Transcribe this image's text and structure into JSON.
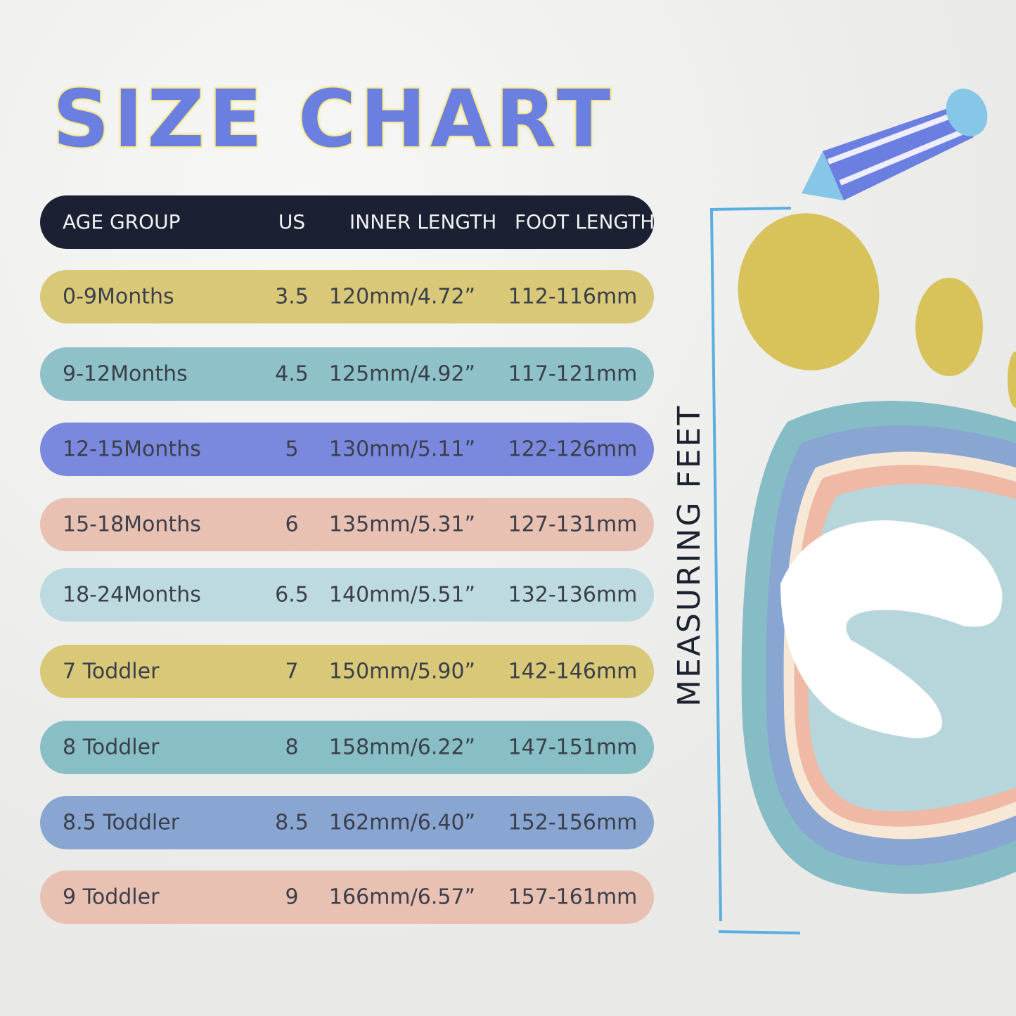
{
  "title": "SIZE CHART",
  "side_label": "MEASURING FEET",
  "table": {
    "headers": [
      "AGE GROUP",
      "US",
      "INNER LENGTH",
      "FOOT LENGTH"
    ],
    "rows": [
      {
        "age": "0-9Months",
        "us": "3.5",
        "inner": "120mm/4.72”",
        "foot": "112-116mm",
        "color": "#d8c878"
      },
      {
        "age": "9-12Months",
        "us": "4.5",
        "inner": "125mm/4.92”",
        "foot": "117-121mm",
        "color": "#8ec2c8"
      },
      {
        "age": "12-15Months",
        "us": "5",
        "inner": "130mm/5.11”",
        "foot": "122-126mm",
        "color": "#7a88de"
      },
      {
        "age": "15-18Months",
        "us": "6",
        "inner": "135mm/5.31”",
        "foot": "127-131mm",
        "color": "#e9c1b3"
      },
      {
        "age": "18-24Months",
        "us": "6.5",
        "inner": "140mm/5.51”",
        "foot": "132-136mm",
        "color": "#bcdadf"
      },
      {
        "age": "7 Toddler",
        "us": "7",
        "inner": "150mm/5.90”",
        "foot": "142-146mm",
        "color": "#d8c878"
      },
      {
        "age": "8 Toddler",
        "us": "8",
        "inner": "158mm/6.22”",
        "foot": "147-151mm",
        "color": "#88bec6"
      },
      {
        "age": "8.5 Toddler",
        "us": "8.5",
        "inner": "162mm/6.40”",
        "foot": "152-156mm",
        "color": "#89a6d2"
      },
      {
        "age": "9 Toddler",
        "us": "9",
        "inner": "166mm/6.57”",
        "foot": "157-161mm",
        "color": "#e9c1b3"
      }
    ]
  }
}
